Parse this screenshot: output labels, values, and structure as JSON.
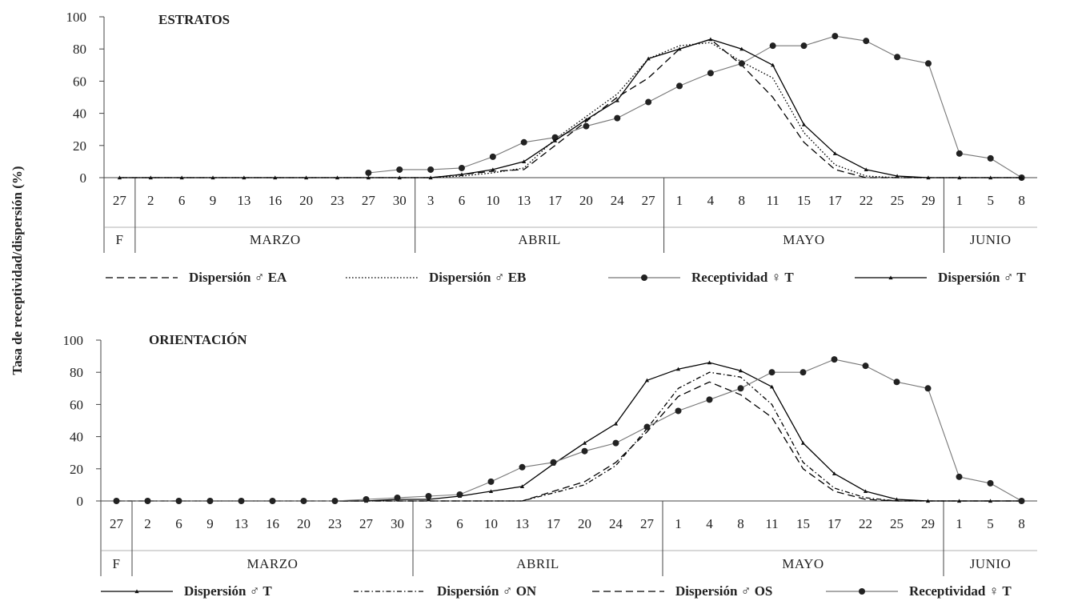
{
  "y_axis_label": "Tasa de receptividad/dispersión (%)",
  "categories": [
    "27",
    "2",
    "6",
    "9",
    "13",
    "16",
    "20",
    "23",
    "27",
    "30",
    "3",
    "6",
    "10",
    "13",
    "17",
    "20",
    "24",
    "27",
    "1",
    "4",
    "8",
    "11",
    "15",
    "17",
    "22",
    "25",
    "29",
    "1",
    "5",
    "8"
  ],
  "months": [
    {
      "label": "F",
      "start": 0,
      "end": 0
    },
    {
      "label": "MARZO",
      "start": 1,
      "end": 9
    },
    {
      "label": "ABRIL",
      "start": 10,
      "end": 17
    },
    {
      "label": "MAYO",
      "start": 18,
      "end": 26
    },
    {
      "label": "JUNIO",
      "start": 27,
      "end": 29
    }
  ],
  "chart_data": [
    {
      "type": "line",
      "title": "ESTRATOS",
      "ylim": [
        0,
        100
      ],
      "yticks": [
        0,
        20,
        40,
        60,
        80,
        100
      ],
      "grid": false,
      "legend_position": "bottom",
      "series": [
        {
          "name": "Dispersión ♂ EA",
          "style": "dashed",
          "marker": "none",
          "color": "#000000",
          "values": [
            0,
            0,
            0,
            0,
            0,
            0,
            0,
            0,
            0,
            0,
            0,
            2,
            4,
            5,
            20,
            35,
            50,
            62,
            80,
            86,
            70,
            50,
            22,
            5,
            0,
            0,
            0,
            0,
            0,
            0
          ]
        },
        {
          "name": "Dispersión ♂ EB",
          "style": "dotted",
          "marker": "none",
          "color": "#000000",
          "values": [
            0,
            0,
            0,
            0,
            0,
            0,
            0,
            0,
            0,
            0,
            0,
            1,
            3,
            6,
            24,
            38,
            52,
            74,
            82,
            84,
            72,
            62,
            28,
            8,
            1,
            0,
            0,
            0,
            0,
            0
          ]
        },
        {
          "name": "Receptividad ♀ T",
          "style": "solid",
          "marker": "circle",
          "color": "#777777",
          "values": [
            null,
            null,
            null,
            null,
            null,
            null,
            null,
            null,
            3,
            5,
            5,
            6,
            13,
            22,
            25,
            32,
            37,
            47,
            57,
            65,
            71,
            82,
            82,
            88,
            85,
            75,
            71,
            15,
            12,
            0
          ]
        },
        {
          "name": "Dispersión ♂ T",
          "style": "solid",
          "marker": "triangle",
          "color": "#000000",
          "values": [
            0,
            0,
            0,
            0,
            0,
            0,
            0,
            0,
            0,
            0,
            0,
            2,
            5,
            10,
            23,
            36,
            48,
            74,
            80,
            86,
            80,
            70,
            33,
            15,
            5,
            1,
            0,
            0,
            0,
            0
          ]
        }
      ]
    },
    {
      "type": "line",
      "title": "ORIENTACIÓN",
      "ylim": [
        0,
        100
      ],
      "yticks": [
        0,
        20,
        40,
        60,
        80,
        100
      ],
      "grid": false,
      "legend_position": "bottom",
      "series": [
        {
          "name": "Dispersión ♂ T",
          "style": "solid",
          "marker": "triangle",
          "color": "#000000",
          "values": [
            0,
            0,
            0,
            0,
            0,
            0,
            0,
            0,
            0,
            1,
            1,
            3,
            6,
            9,
            23,
            36,
            48,
            75,
            82,
            86,
            81,
            71,
            36,
            17,
            6,
            1,
            0,
            0,
            0,
            0
          ]
        },
        {
          "name": "Dispersión ♂ ON",
          "style": "dashdot",
          "marker": "none",
          "color": "#000000",
          "values": [
            0,
            0,
            0,
            0,
            0,
            0,
            0,
            0,
            0,
            0,
            0,
            0,
            0,
            0,
            5,
            10,
            22,
            45,
            70,
            80,
            77,
            60,
            24,
            8,
            2,
            0,
            0,
            0,
            0,
            0
          ]
        },
        {
          "name": "Dispersión ♂ OS",
          "style": "dashed",
          "marker": "none",
          "color": "#000000",
          "values": [
            0,
            0,
            0,
            0,
            0,
            0,
            0,
            0,
            0,
            0,
            0,
            0,
            0,
            0,
            6,
            12,
            24,
            43,
            65,
            74,
            66,
            52,
            20,
            6,
            1,
            0,
            0,
            0,
            0,
            0
          ]
        },
        {
          "name": "Receptividad ♀ T",
          "style": "solid",
          "marker": "circle",
          "color": "#777777",
          "values": [
            0,
            0,
            0,
            0,
            0,
            0,
            0,
            0,
            1,
            2,
            3,
            4,
            12,
            21,
            24,
            31,
            36,
            46,
            56,
            63,
            70,
            80,
            80,
            88,
            84,
            74,
            70,
            15,
            11,
            0
          ]
        }
      ]
    }
  ]
}
